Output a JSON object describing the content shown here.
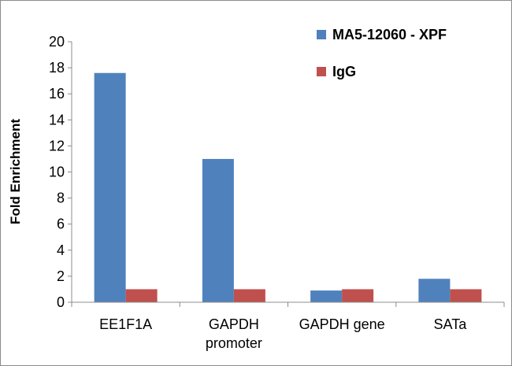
{
  "chart_data": {
    "type": "bar",
    "title": "",
    "xlabel": "",
    "ylabel": "Fold Enrichment",
    "ylim": [
      0,
      20
    ],
    "yticks": [
      0,
      2,
      4,
      6,
      8,
      10,
      12,
      14,
      16,
      18,
      20
    ],
    "grid": false,
    "legend_position": "top-right",
    "categories": [
      [
        "EE1F1A"
      ],
      [
        "GAPDH",
        "promoter"
      ],
      [
        "GAPDH gene"
      ],
      [
        "SATa"
      ]
    ],
    "series": [
      {
        "name": "MA5-12060 - XPF",
        "color": "#4f81bd",
        "values": [
          17.6,
          11.0,
          0.9,
          1.8
        ]
      },
      {
        "name": "IgG",
        "color": "#c0504d",
        "values": [
          1.0,
          1.0,
          1.0,
          1.0
        ]
      }
    ]
  }
}
